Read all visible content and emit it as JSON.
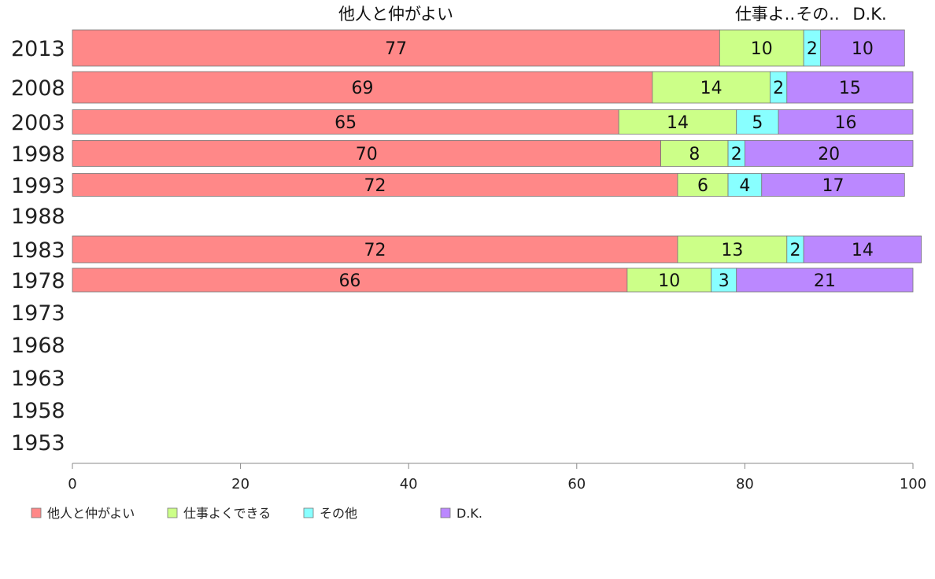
{
  "chart_data": {
    "type": "bar",
    "orientation": "horizontal",
    "stacked": true,
    "categories": [
      "2013",
      "2008",
      "2003",
      "1998",
      "1993",
      "1988",
      "1983",
      "1978",
      "1973",
      "1968",
      "1963",
      "1958",
      "1953"
    ],
    "series": [
      {
        "name": "他人と仲がよい",
        "color": "#ff8888",
        "values": [
          77,
          69,
          65,
          70,
          72,
          null,
          72,
          66,
          null,
          null,
          null,
          null,
          null
        ]
      },
      {
        "name": "仕事よくできる",
        "color": "#ccff88",
        "values": [
          10,
          14,
          14,
          8,
          6,
          null,
          13,
          10,
          null,
          null,
          null,
          null,
          null
        ]
      },
      {
        "name": "その他",
        "color": "#88ffff",
        "values": [
          2,
          2,
          5,
          2,
          4,
          null,
          2,
          3,
          null,
          null,
          null,
          null,
          null
        ]
      },
      {
        "name": "D.K.",
        "color": "#bb88ff",
        "values": [
          10,
          15,
          16,
          20,
          17,
          null,
          14,
          21,
          null,
          null,
          null,
          null,
          null
        ]
      }
    ],
    "top_labels": [
      "他人と仲がよい",
      "仕事よ..",
      "その..",
      "D.K."
    ],
    "xlim": [
      0,
      100
    ],
    "xticks": [
      0,
      20,
      40,
      60,
      80,
      100
    ],
    "grid": false,
    "legend": "bottom"
  }
}
